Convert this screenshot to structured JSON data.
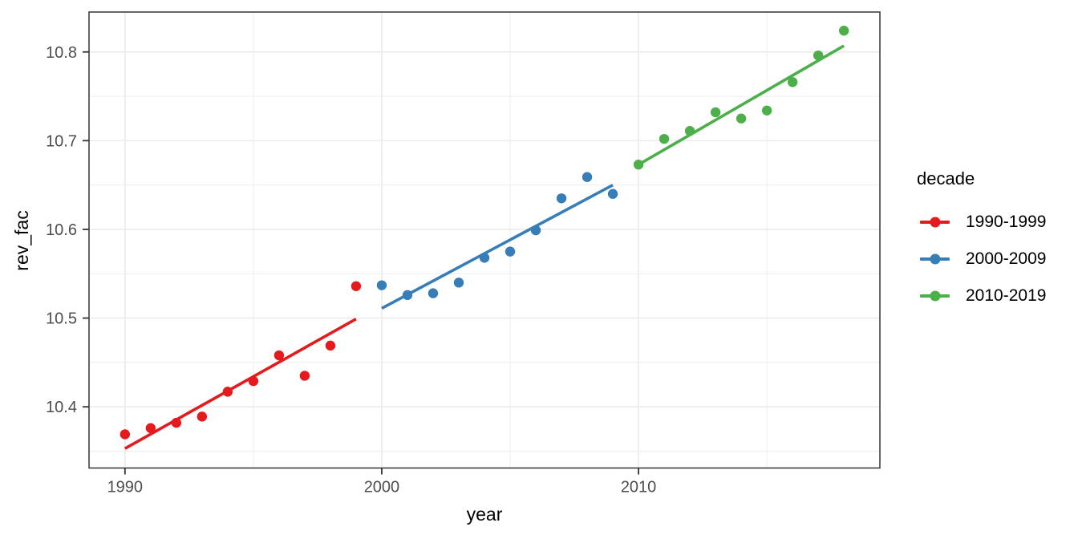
{
  "figure": {
    "background": "#ffffff"
  },
  "axes": {
    "x": {
      "title": "year",
      "major": [
        1990,
        2000,
        2010
      ],
      "major_labels": [
        "1990",
        "2000",
        "2010"
      ],
      "minor": [
        1995,
        2005,
        2015
      ]
    },
    "y": {
      "title": "rev_fac",
      "major": [
        10.4,
        10.5,
        10.6,
        10.7,
        10.8
      ],
      "major_labels": [
        "10.4",
        "10.5",
        "10.6",
        "10.7",
        "10.8"
      ],
      "minor": [
        10.35,
        10.45,
        10.55,
        10.65,
        10.75
      ]
    }
  },
  "legend": {
    "title": "decade",
    "items": [
      {
        "label": "1990-1999",
        "color": "#E41A1C"
      },
      {
        "label": "2000-2009",
        "color": "#377EB8"
      },
      {
        "label": "2010-2019",
        "color": "#4DAF4A"
      }
    ]
  },
  "style_colors": {
    "grid": "#EBEBEB",
    "panel_border": "#333333",
    "tick_mark": "#333333",
    "tick_text": "#4D4D4D"
  },
  "chart_data": {
    "type": "scatter",
    "title": "",
    "xlabel": "year",
    "ylabel": "rev_fac",
    "xlim": [
      1988.6,
      2019.4
    ],
    "ylim": [
      10.331,
      10.845
    ],
    "grid": true,
    "legend_position": "right",
    "series": [
      {
        "name": "1990-1999",
        "color": "#E41A1C",
        "x": [
          1990,
          1991,
          1992,
          1993,
          1994,
          1995,
          1996,
          1997,
          1998,
          1999
        ],
        "y": [
          10.369,
          10.376,
          10.382,
          10.389,
          10.417,
          10.429,
          10.458,
          10.435,
          10.469,
          10.536
        ],
        "trend": {
          "x": [
            1990,
            1999
          ],
          "y": [
            10.353,
            10.499
          ]
        }
      },
      {
        "name": "2000-2009",
        "color": "#377EB8",
        "x": [
          2000,
          2001,
          2002,
          2003,
          2004,
          2005,
          2006,
          2007,
          2008,
          2009
        ],
        "y": [
          10.537,
          10.526,
          10.528,
          10.54,
          10.568,
          10.575,
          10.599,
          10.635,
          10.659,
          10.64
        ],
        "trend": {
          "x": [
            2000,
            2009
          ],
          "y": [
            10.511,
            10.65
          ]
        }
      },
      {
        "name": "2010-2019",
        "color": "#4DAF4A",
        "x": [
          2010,
          2011,
          2012,
          2013,
          2014,
          2015,
          2016,
          2017,
          2018
        ],
        "y": [
          10.673,
          10.702,
          10.711,
          10.732,
          10.725,
          10.734,
          10.766,
          10.796,
          10.824
        ],
        "trend": {
          "x": [
            2010,
            2018
          ],
          "y": [
            10.673,
            10.807
          ]
        }
      }
    ]
  }
}
